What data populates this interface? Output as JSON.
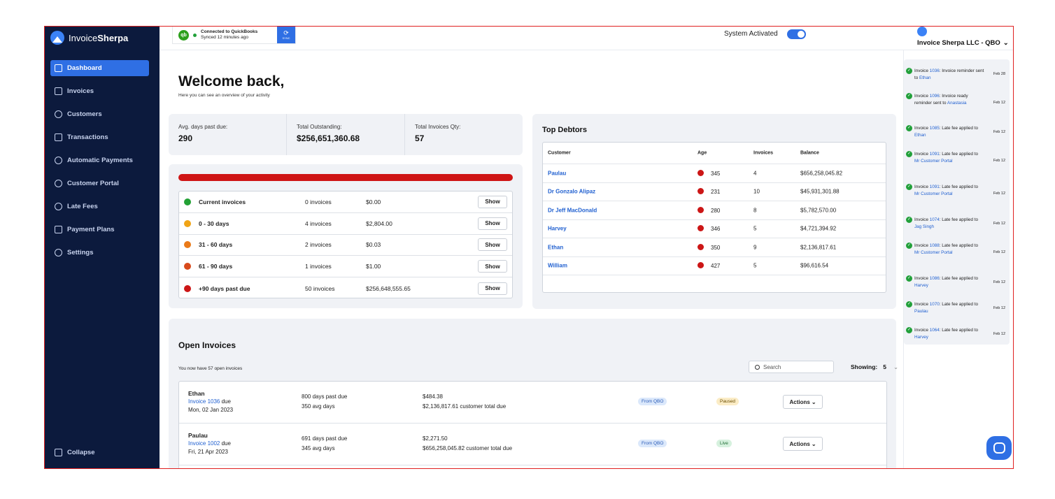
{
  "brand": {
    "prefix": "Invoice",
    "name": "Sherpa"
  },
  "sidebar": {
    "items": [
      {
        "label": "Dashboard",
        "active": true
      },
      {
        "label": "Invoices"
      },
      {
        "label": "Customers"
      },
      {
        "label": "Transactions"
      },
      {
        "label": "Automatic Payments"
      },
      {
        "label": "Customer Portal"
      },
      {
        "label": "Late Fees"
      },
      {
        "label": "Payment Plans"
      },
      {
        "label": "Settings"
      }
    ],
    "collapse_label": "Collapse"
  },
  "topbar": {
    "qb_logo": "qb",
    "qb_status": "Connected to QuickBooks",
    "qb_synced": "Synced 12 minutes ago",
    "sync_label": "SYNC",
    "system_label": "System Activated",
    "system_active": true,
    "company": "Invoice Sherpa LLC - QBO"
  },
  "welcome": {
    "title": "Welcome back,",
    "subtitle": "Here you can see an overview of your activity"
  },
  "stats": [
    {
      "label": "Avg. days past due:",
      "value": "290"
    },
    {
      "label": "Total Outstanding:",
      "value": "$256,651,360.68"
    },
    {
      "label": "Total Invoices Qty:",
      "value": "57"
    }
  ],
  "aging": [
    {
      "label": "Current invoices",
      "count": "0 invoices",
      "amount": "$0.00",
      "color": "#23a135",
      "button": "Show"
    },
    {
      "label": "0 - 30 days",
      "count": "4 invoices",
      "amount": "$2,804.00",
      "color": "#f0a416",
      "button": "Show"
    },
    {
      "label": "31 - 60 days",
      "count": "2 invoices",
      "amount": "$0.03",
      "color": "#ea7a18",
      "button": "Show"
    },
    {
      "label": "61 - 90 days",
      "count": "1 invoices",
      "amount": "$1.00",
      "color": "#d84a1c",
      "button": "Show"
    },
    {
      "label": "+90 days past due",
      "count": "50 invoices",
      "amount": "$256,648,555.65",
      "color": "#cc1616",
      "button": "Show"
    }
  ],
  "debtors": {
    "title": "Top Debtors",
    "headers": {
      "customer": "Customer",
      "age": "Age",
      "invoices": "Invoices",
      "balance": "Balance"
    },
    "rows": [
      {
        "customer": "Paulau",
        "age": "345",
        "invoices": "4",
        "balance": "$656,258,045.82"
      },
      {
        "customer": "Dr Gonzalo Alipaz",
        "age": "231",
        "invoices": "10",
        "balance": "$45,931,301.88"
      },
      {
        "customer": "Dr Jeff MacDonald",
        "age": "280",
        "invoices": "8",
        "balance": "$5,782,570.00"
      },
      {
        "customer": "Harvey",
        "age": "346",
        "invoices": "5",
        "balance": "$4,721,394.92"
      },
      {
        "customer": "Ethan",
        "age": "350",
        "invoices": "9",
        "balance": "$2,136,817.61"
      },
      {
        "customer": "William",
        "age": "427",
        "invoices": "5",
        "balance": "$96,616.54"
      }
    ]
  },
  "open_invoices": {
    "title": "Open Invoices",
    "subtitle": "You now have 57 open invoices",
    "search_placeholder": "Search",
    "showing_label": "Showing:",
    "showing_value": "5",
    "rows": [
      {
        "customer": "Ethan",
        "invoice": "Invoice 1036",
        "due_word": "due",
        "due_date": "Mon, 02 Jan 2023",
        "days_past": "800 days past due",
        "avg_days": "350 avg days",
        "amount": "$484.38",
        "total": "$2,136,817.61 customer total due",
        "source": "From QBO",
        "status": "Paused",
        "status_kind": "paused",
        "actions": "Actions"
      },
      {
        "customer": "Paulau",
        "invoice": "Invoice 1002",
        "due_word": "due",
        "due_date": "Fri, 21 Apr 2023",
        "days_past": "691 days past due",
        "avg_days": "345 avg days",
        "amount": "$2,271.50",
        "total": "$656,258,045.82 customer total due",
        "source": "From QBO",
        "status": "Live",
        "status_kind": "live",
        "actions": "Actions"
      }
    ]
  },
  "activity": [
    {
      "pre": "Invoice ",
      "inv": "1036",
      "mid": ": Invoice reminder sent to ",
      "who": "Ethan",
      "date": "Feb 28"
    },
    {
      "pre": "Invoice ",
      "inv": "1096",
      "mid": ": Invoice ready reminder sent to ",
      "who": "Anastasia",
      "date": "Feb 12"
    },
    {
      "pre": "Invoice ",
      "inv": "1085",
      "mid": ": Late fee applied to ",
      "who": "Ethan",
      "date": "Feb 12"
    },
    {
      "pre": "Invoice ",
      "inv": "1091",
      "mid": ": Late fee applied to ",
      "who": "Mr Customer Portal",
      "date": "Feb 12"
    },
    {
      "pre": "Invoice ",
      "inv": "1091",
      "mid": ": Late fee applied to ",
      "who": "Mr Customer Portal",
      "date": "Feb 12"
    },
    {
      "pre": "Invoice ",
      "inv": "1074",
      "mid": ": Late fee applied to ",
      "who": "Jag Singh",
      "date": "Feb 12"
    },
    {
      "pre": "Invoice ",
      "inv": "1088",
      "mid": ": Late fee applied to ",
      "who": "Mr Customer Portal",
      "date": "Feb 12"
    },
    {
      "pre": "Invoice ",
      "inv": "1086",
      "mid": ": Late fee applied to ",
      "who": "Harvey",
      "date": "Feb 12"
    },
    {
      "pre": "Invoice ",
      "inv": "1070",
      "mid": ": Late fee applied to ",
      "who": "Paulau",
      "date": "Feb 12"
    },
    {
      "pre": "Invoice ",
      "inv": "1064",
      "mid": ": Late fee applied to ",
      "who": "Harvey",
      "date": "Feb 12"
    }
  ]
}
